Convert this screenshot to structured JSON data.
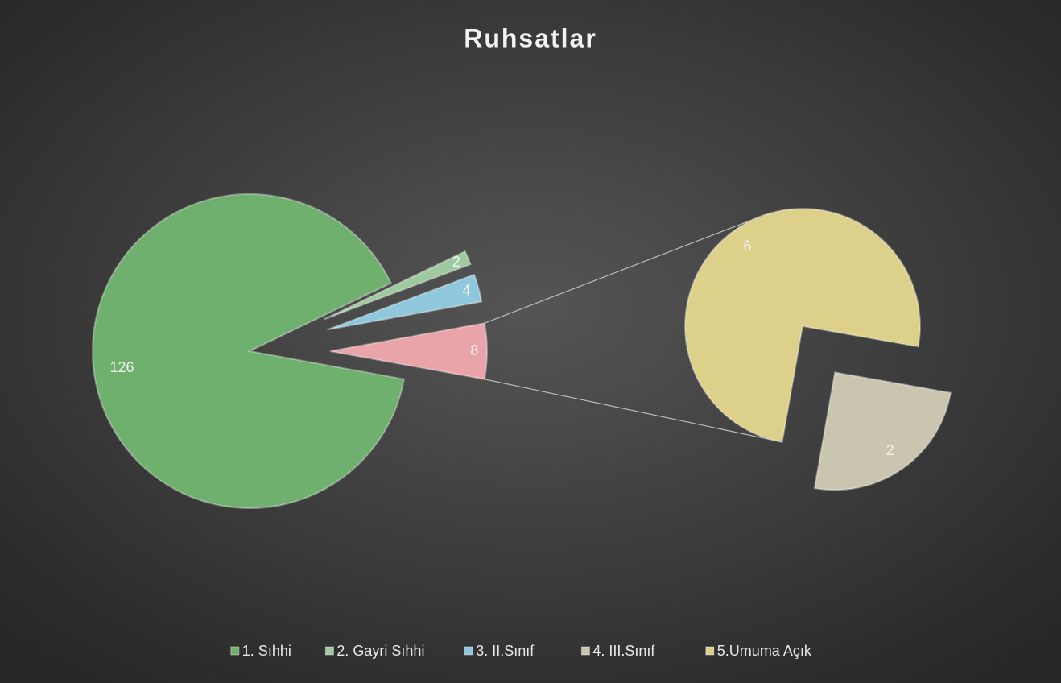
{
  "chart_data": {
    "type": "pie-of-pie",
    "title": "Ruhsatlar",
    "categories": [
      "1. Sıhhi",
      "2. Gayri Sıhhi",
      "3. II.Sınıf",
      "4. III.Sınıf",
      "5.Umuma Açık"
    ],
    "values": [
      126,
      2,
      4,
      2,
      6
    ],
    "colors": [
      "#6fb06f",
      "#9fca9f",
      "#8fc8dc",
      "#c9c5ae",
      "#ddd08a"
    ],
    "second_plot_values": 2,
    "other": {
      "value": 8,
      "color": "#e9a4aa"
    },
    "legend": "bottom"
  }
}
